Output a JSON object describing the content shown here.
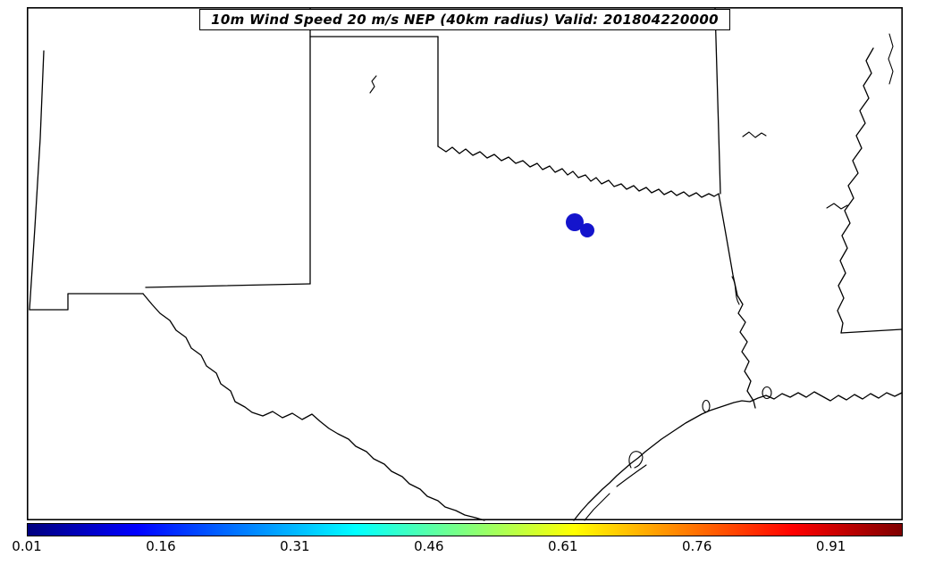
{
  "figure": {
    "background": "#ffffff",
    "frame_color": "#000000"
  },
  "chart_data": {
    "type": "heatmap",
    "title": "10m Wind Speed 20 m/s NEP (40km radius) Valid: 201804220000",
    "field": "10m Wind Speed 20 m/s Neighborhood Ensemble Probability (40km radius)",
    "valid_time": "201804220000",
    "map_region": "Texas, eastern New Mexico, Oklahoma, Arkansas and western Louisiana with Gulf of Mexico coastline",
    "map_line_color": "#000000",
    "colorbar": {
      "orientation": "horizontal",
      "value_range": [
        0.01,
        0.99
      ],
      "colormap": "jet",
      "ticks": [
        {
          "label": "0.01",
          "pos_pct": 0
        },
        {
          "label": "0.16",
          "pos_pct": 15.3
        },
        {
          "label": "0.31",
          "pos_pct": 30.6
        },
        {
          "label": "0.46",
          "pos_pct": 45.9
        },
        {
          "label": "0.61",
          "pos_pct": 61.2
        },
        {
          "label": "0.76",
          "pos_pct": 76.5
        },
        {
          "label": "0.91",
          "pos_pct": 91.8
        }
      ],
      "gradient_stops": [
        {
          "pos": 0.0,
          "color": "#00007F"
        },
        {
          "pos": 0.125,
          "color": "#0000FF"
        },
        {
          "pos": 0.25,
          "color": "#007FFF"
        },
        {
          "pos": 0.375,
          "color": "#00FFFF"
        },
        {
          "pos": 0.5,
          "color": "#7FFF7F"
        },
        {
          "pos": 0.625,
          "color": "#FFFF00"
        },
        {
          "pos": 0.75,
          "color": "#FF7F00"
        },
        {
          "pos": 0.875,
          "color": "#FF0000"
        },
        {
          "pos": 1.0,
          "color": "#7F0000"
        }
      ]
    },
    "regions": [
      {
        "description": "Small filled probability contour over north-central Texas (near DFW)",
        "approx_value_range": [
          0.01,
          0.15
        ],
        "color": "#1414CC"
      }
    ]
  }
}
